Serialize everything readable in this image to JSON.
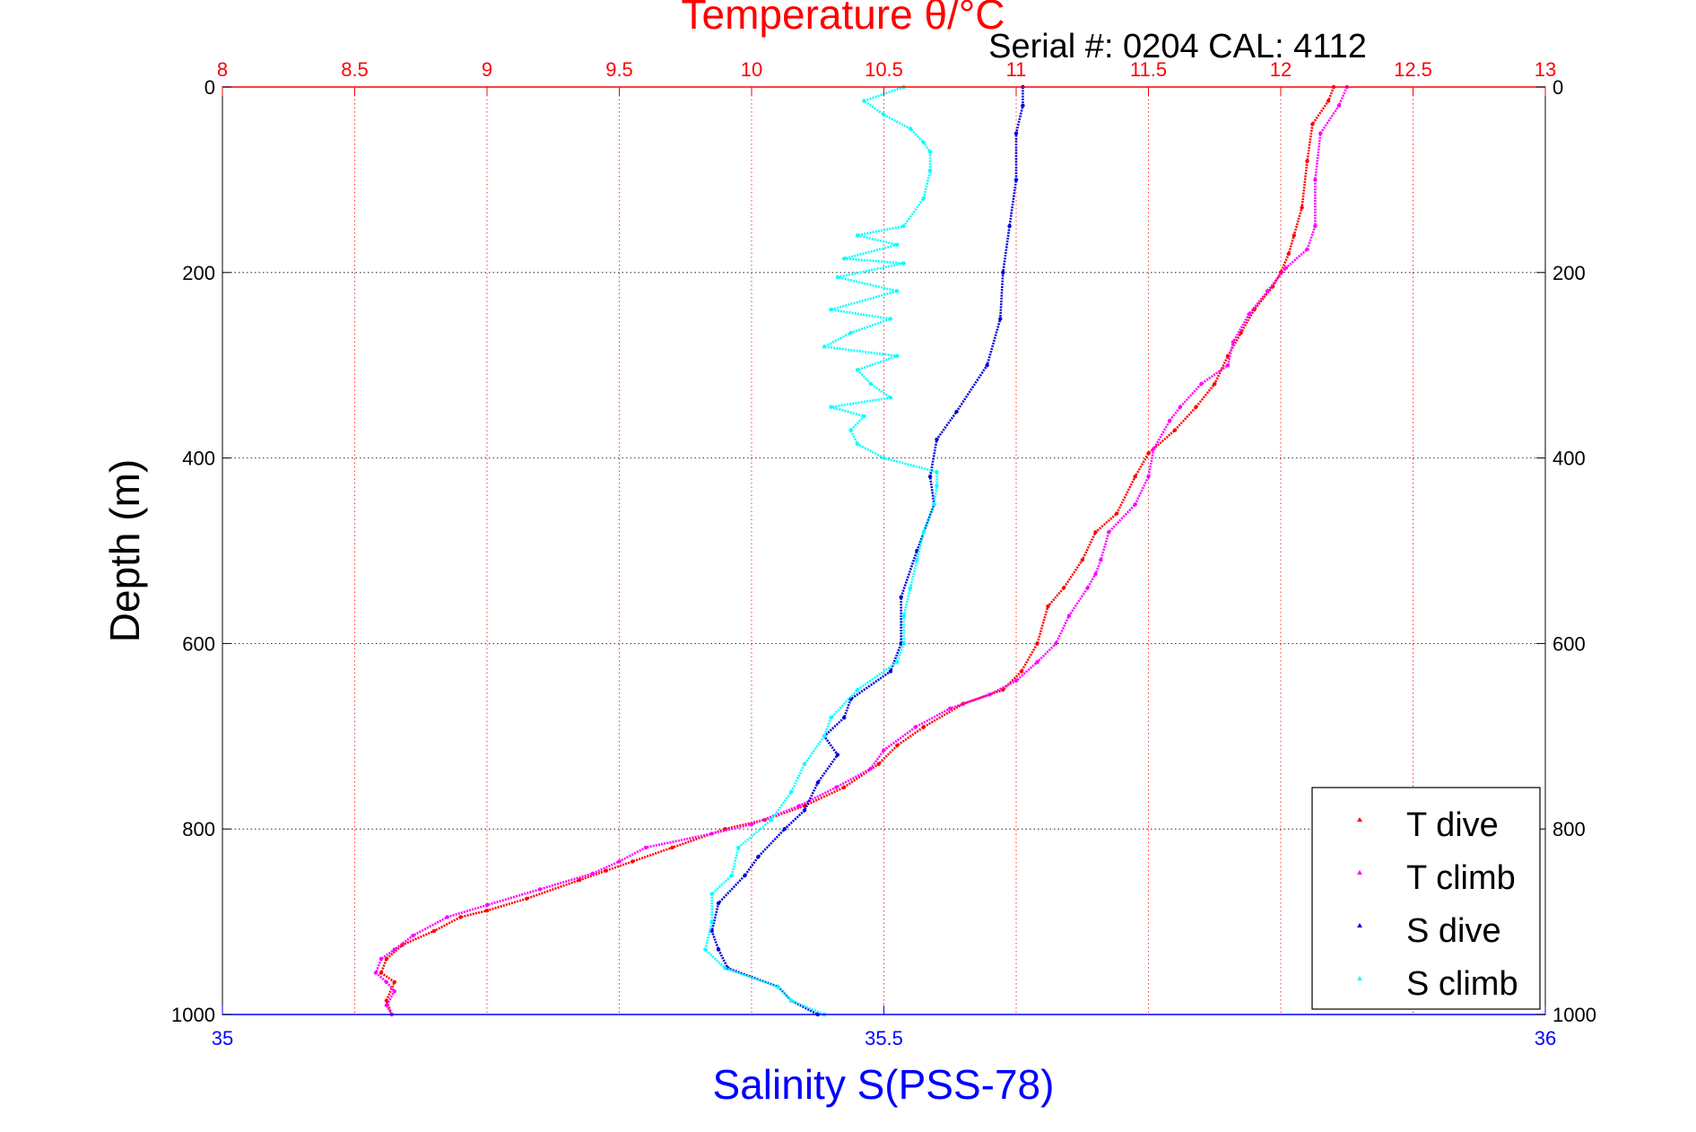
{
  "chart_data": {
    "type": "scatter",
    "title": "Temperature θ/°C",
    "subtitle": "Serial #: 0204  CAL: 4112",
    "ylabel": "Depth (m)",
    "xlabel": "Salinity S(PSS-78)",
    "y_axis": {
      "range": [
        0,
        1000
      ],
      "ticks": [
        0,
        200,
        400,
        600,
        800,
        1000
      ],
      "tick_labels": [
        "0",
        "200",
        "400",
        "600",
        "800",
        "1000"
      ],
      "reversed": true
    },
    "x_top_temperature": {
      "range": [
        8,
        13
      ],
      "ticks": [
        8,
        8.5,
        9,
        9.5,
        10,
        10.5,
        11,
        11.5,
        12,
        12.5,
        13
      ],
      "tick_labels": [
        "8",
        "8.5",
        "9",
        "9.5",
        "10",
        "10.5",
        "11",
        "11.5",
        "12",
        "12.5",
        "13"
      ]
    },
    "x_bottom_salinity": {
      "range": [
        35,
        36
      ],
      "ticks": [
        35,
        35.5,
        36
      ],
      "tick_labels": [
        "35",
        "35.5",
        "36"
      ]
    },
    "grid": true,
    "legend_placement": "bottom-right",
    "colors": {
      "title": "#ff0000",
      "salinity_axis": "#0000ff",
      "t_dive": "#ff0000",
      "t_climb": "#ff00ff",
      "s_dive": "#0000dd",
      "s_climb": "#00ffff"
    },
    "series": [
      {
        "name": "T dive",
        "axis": "temperature",
        "color": "#ff0000",
        "points": [
          [
            12.2,
            0
          ],
          [
            12.18,
            15
          ],
          [
            12.12,
            40
          ],
          [
            12.1,
            80
          ],
          [
            12.08,
            130
          ],
          [
            12.05,
            160
          ],
          [
            12.03,
            180
          ],
          [
            12.0,
            200
          ],
          [
            11.97,
            215
          ],
          [
            11.9,
            240
          ],
          [
            11.85,
            265
          ],
          [
            11.8,
            290
          ],
          [
            11.75,
            320
          ],
          [
            11.68,
            345
          ],
          [
            11.6,
            370
          ],
          [
            11.5,
            395
          ],
          [
            11.45,
            420
          ],
          [
            11.38,
            460
          ],
          [
            11.3,
            480
          ],
          [
            11.25,
            510
          ],
          [
            11.18,
            540
          ],
          [
            11.12,
            560
          ],
          [
            11.08,
            600
          ],
          [
            11.02,
            630
          ],
          [
            10.95,
            650
          ],
          [
            10.8,
            665
          ],
          [
            10.65,
            690
          ],
          [
            10.55,
            710
          ],
          [
            10.48,
            730
          ],
          [
            10.35,
            755
          ],
          [
            10.2,
            775
          ],
          [
            10.05,
            790
          ],
          [
            9.9,
            800
          ],
          [
            9.7,
            820
          ],
          [
            9.55,
            835
          ],
          [
            9.45,
            845
          ],
          [
            9.35,
            855
          ],
          [
            9.15,
            875
          ],
          [
            9.0,
            888
          ],
          [
            8.9,
            895
          ],
          [
            8.8,
            910
          ],
          [
            8.68,
            925
          ],
          [
            8.62,
            940
          ],
          [
            8.6,
            955
          ],
          [
            8.65,
            965
          ],
          [
            8.62,
            985
          ],
          [
            8.64,
            1000
          ]
        ]
      },
      {
        "name": "T climb",
        "axis": "temperature",
        "color": "#ff00ff",
        "points": [
          [
            12.25,
            0
          ],
          [
            12.22,
            20
          ],
          [
            12.15,
            50
          ],
          [
            12.13,
            100
          ],
          [
            12.13,
            150
          ],
          [
            12.1,
            175
          ],
          [
            12.02,
            195
          ],
          [
            11.95,
            220
          ],
          [
            11.88,
            245
          ],
          [
            11.82,
            275
          ],
          [
            11.8,
            300
          ],
          [
            11.7,
            320
          ],
          [
            11.62,
            345
          ],
          [
            11.58,
            360
          ],
          [
            11.52,
            390
          ],
          [
            11.5,
            420
          ],
          [
            11.45,
            450
          ],
          [
            11.35,
            480
          ],
          [
            11.32,
            510
          ],
          [
            11.3,
            525
          ],
          [
            11.27,
            540
          ],
          [
            11.2,
            570
          ],
          [
            11.15,
            600
          ],
          [
            11.08,
            620
          ],
          [
            11.0,
            640
          ],
          [
            10.9,
            655
          ],
          [
            10.75,
            670
          ],
          [
            10.62,
            690
          ],
          [
            10.5,
            715
          ],
          [
            10.45,
            735
          ],
          [
            10.32,
            755
          ],
          [
            10.18,
            775
          ],
          [
            10.0,
            795
          ],
          [
            9.85,
            805
          ],
          [
            9.6,
            820
          ],
          [
            9.5,
            835
          ],
          [
            9.4,
            848
          ],
          [
            9.2,
            865
          ],
          [
            9.0,
            882
          ],
          [
            8.85,
            895
          ],
          [
            8.72,
            915
          ],
          [
            8.65,
            930
          ],
          [
            8.6,
            940
          ],
          [
            8.58,
            955
          ],
          [
            8.62,
            965
          ],
          [
            8.65,
            975
          ],
          [
            8.62,
            990
          ],
          [
            8.64,
            1000
          ]
        ]
      },
      {
        "name": "S dive",
        "axis": "salinity",
        "color": "#0000dd",
        "points": [
          [
            35.605,
            0
          ],
          [
            35.605,
            20
          ],
          [
            35.6,
            50
          ],
          [
            35.6,
            100
          ],
          [
            35.595,
            150
          ],
          [
            35.59,
            200
          ],
          [
            35.588,
            250
          ],
          [
            35.578,
            300
          ],
          [
            35.555,
            350
          ],
          [
            35.54,
            380
          ],
          [
            35.535,
            420
          ],
          [
            35.538,
            450
          ],
          [
            35.525,
            500
          ],
          [
            35.513,
            550
          ],
          [
            35.513,
            600
          ],
          [
            35.505,
            630
          ],
          [
            35.475,
            660
          ],
          [
            35.47,
            680
          ],
          [
            35.455,
            700
          ],
          [
            35.465,
            720
          ],
          [
            35.45,
            750
          ],
          [
            35.44,
            780
          ],
          [
            35.425,
            800
          ],
          [
            35.405,
            830
          ],
          [
            35.395,
            850
          ],
          [
            35.375,
            880
          ],
          [
            35.37,
            910
          ],
          [
            35.375,
            930
          ],
          [
            35.382,
            950
          ],
          [
            35.42,
            970
          ],
          [
            35.43,
            985
          ],
          [
            35.45,
            1000
          ]
        ]
      },
      {
        "name": "S climb",
        "axis": "salinity",
        "color": "#00ffff",
        "points": [
          [
            35.515,
            0
          ],
          [
            35.485,
            15
          ],
          [
            35.5,
            30
          ],
          [
            35.52,
            45
          ],
          [
            35.53,
            60
          ],
          [
            35.535,
            70
          ],
          [
            35.535,
            90
          ],
          [
            35.53,
            120
          ],
          [
            35.515,
            150
          ],
          [
            35.48,
            160
          ],
          [
            35.51,
            170
          ],
          [
            35.47,
            185
          ],
          [
            35.515,
            190
          ],
          [
            35.465,
            205
          ],
          [
            35.51,
            220
          ],
          [
            35.46,
            240
          ],
          [
            35.505,
            250
          ],
          [
            35.475,
            265
          ],
          [
            35.455,
            280
          ],
          [
            35.51,
            290
          ],
          [
            35.48,
            305
          ],
          [
            35.49,
            320
          ],
          [
            35.505,
            335
          ],
          [
            35.46,
            345
          ],
          [
            35.485,
            355
          ],
          [
            35.475,
            370
          ],
          [
            35.48,
            385
          ],
          [
            35.5,
            400
          ],
          [
            35.54,
            415
          ],
          [
            35.54,
            430
          ],
          [
            35.538,
            450
          ],
          [
            35.53,
            480
          ],
          [
            35.525,
            510
          ],
          [
            35.52,
            540
          ],
          [
            35.515,
            570
          ],
          [
            35.515,
            600
          ],
          [
            35.51,
            620
          ],
          [
            35.48,
            650
          ],
          [
            35.46,
            680
          ],
          [
            35.455,
            700
          ],
          [
            35.44,
            730
          ],
          [
            35.43,
            760
          ],
          [
            35.415,
            790
          ],
          [
            35.39,
            820
          ],
          [
            35.385,
            850
          ],
          [
            35.37,
            870
          ],
          [
            35.37,
            900
          ],
          [
            35.365,
            930
          ],
          [
            35.38,
            950
          ],
          [
            35.42,
            970
          ],
          [
            35.43,
            985
          ],
          [
            35.455,
            1000
          ]
        ]
      }
    ]
  }
}
